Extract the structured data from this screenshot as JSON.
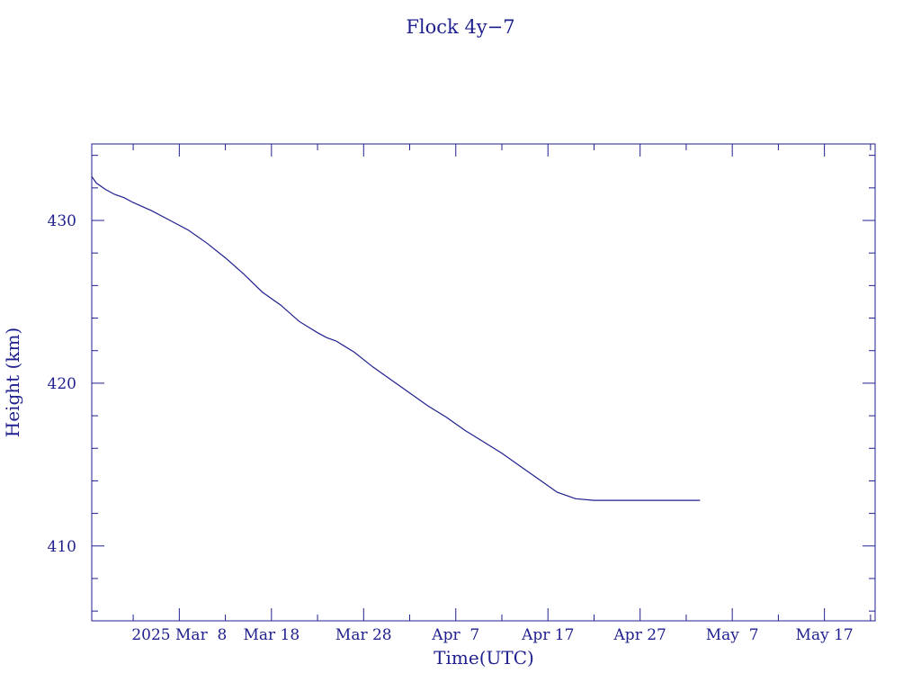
{
  "chart_data": {
    "type": "line",
    "title": "Flock 4y−7",
    "xlabel": "Time(UTC)",
    "ylabel": "Height (km)",
    "colors": {
      "ink": "#1f1f8f",
      "background": "#ffffff"
    },
    "x_tick_labels": [
      "2025 Mar  8",
      "Mar 18",
      "Mar 28",
      "Apr  7",
      "Apr 17",
      "Apr 27",
      "May  7",
      "May 17"
    ],
    "x_tick_dates": [
      "2025-03-08",
      "2025-03-18",
      "2025-03-28",
      "2025-04-07",
      "2025-04-17",
      "2025-04-27",
      "2025-05-07",
      "2025-05-17"
    ],
    "xlim": [
      "2025-02-26T12:00",
      "2025-05-22T12:00"
    ],
    "y_ticks": [
      410,
      420,
      430
    ],
    "ylim": [
      405.4,
      434.7
    ],
    "grid": false,
    "series": [
      {
        "x": [
          "2025-02-26T12:00",
          "2025-02-27",
          "2025-02-28",
          "2025-03-01",
          "2025-03-02",
          "2025-03-03",
          "2025-03-05",
          "2025-03-07",
          "2025-03-09",
          "2025-03-11",
          "2025-03-13",
          "2025-03-15",
          "2025-03-17",
          "2025-03-19",
          "2025-03-21",
          "2025-03-23",
          "2025-03-24",
          "2025-03-25",
          "2025-03-27",
          "2025-03-29",
          "2025-03-31",
          "2025-04-02",
          "2025-04-04",
          "2025-04-06",
          "2025-04-08",
          "2025-04-10",
          "2025-04-12",
          "2025-04-14",
          "2025-04-16",
          "2025-04-18",
          "2025-04-20",
          "2025-04-22",
          "2025-04-24",
          "2025-04-26",
          "2025-04-28",
          "2025-04-30",
          "2025-05-02",
          "2025-05-03",
          "2025-05-03T12:00"
        ],
        "y": [
          432.7,
          432.3,
          431.9,
          431.6,
          431.4,
          431.1,
          430.6,
          430.0,
          429.4,
          428.6,
          427.7,
          426.7,
          425.6,
          424.8,
          423.8,
          423.1,
          422.8,
          422.6,
          421.9,
          421.0,
          420.2,
          419.4,
          418.6,
          417.9,
          417.1,
          416.4,
          415.7,
          414.9,
          414.1,
          413.3,
          412.9,
          412.8,
          412.8,
          412.8,
          412.8,
          412.8,
          412.8,
          412.8,
          412.8
        ]
      }
    ]
  }
}
